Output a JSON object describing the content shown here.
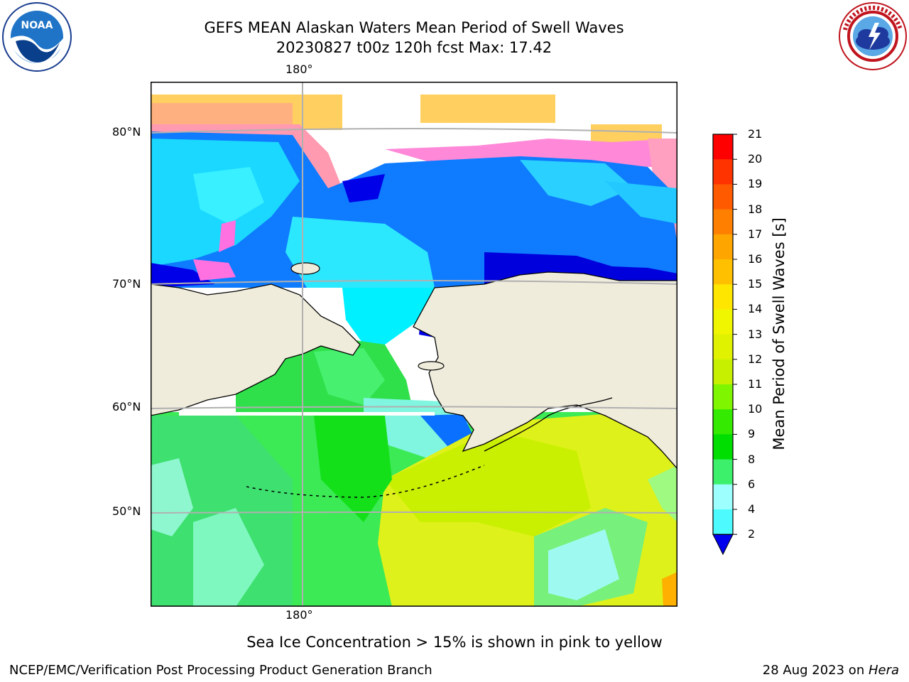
{
  "title": {
    "line1": "GEFS MEAN Alaskan Waters Mean Period of Swell Waves",
    "line2": "20230827 t00z 120h fcst   Max: 17.42"
  },
  "logos": {
    "left": {
      "text": "NOAA",
      "icon": "noaa-logo"
    },
    "right": {
      "icon": "nws-logo"
    }
  },
  "map": {
    "lon_label_top": "180°",
    "lon_label_bottom": "180°",
    "lat_labels": [
      "80°N",
      "70°N",
      "60°N",
      "50°N"
    ],
    "land_color": "#efecdc",
    "grid_color": "#b0b0b0"
  },
  "colorbar": {
    "label": "Mean Period of Swell Waves [s]",
    "ticks": [
      "21",
      "20",
      "19",
      "18",
      "17",
      "16",
      "15",
      "14",
      "13",
      "12",
      "11",
      "10",
      "9",
      "8",
      "6",
      "4",
      "2"
    ],
    "colors": [
      "#ff0000",
      "#ff3300",
      "#ff5a00",
      "#ff7f00",
      "#ffa500",
      "#ffc000",
      "#ffe600",
      "#f0f500",
      "#e0f200",
      "#c6f000",
      "#7ff500",
      "#33ea00",
      "#00dd00",
      "#3cf06c",
      "#9effff",
      "#4dfbff",
      "#00e6ff",
      "#0077ff"
    ],
    "underflow_color": "#0000ee"
  },
  "caption": "Sea Ice Concentration > 15% is shown in pink to yellow",
  "footer": {
    "left": "NCEP/EMC/Verification Post Processing Product Generation Branch",
    "right_date": "28 Aug 2023 on ",
    "right_machine": "Hera"
  }
}
